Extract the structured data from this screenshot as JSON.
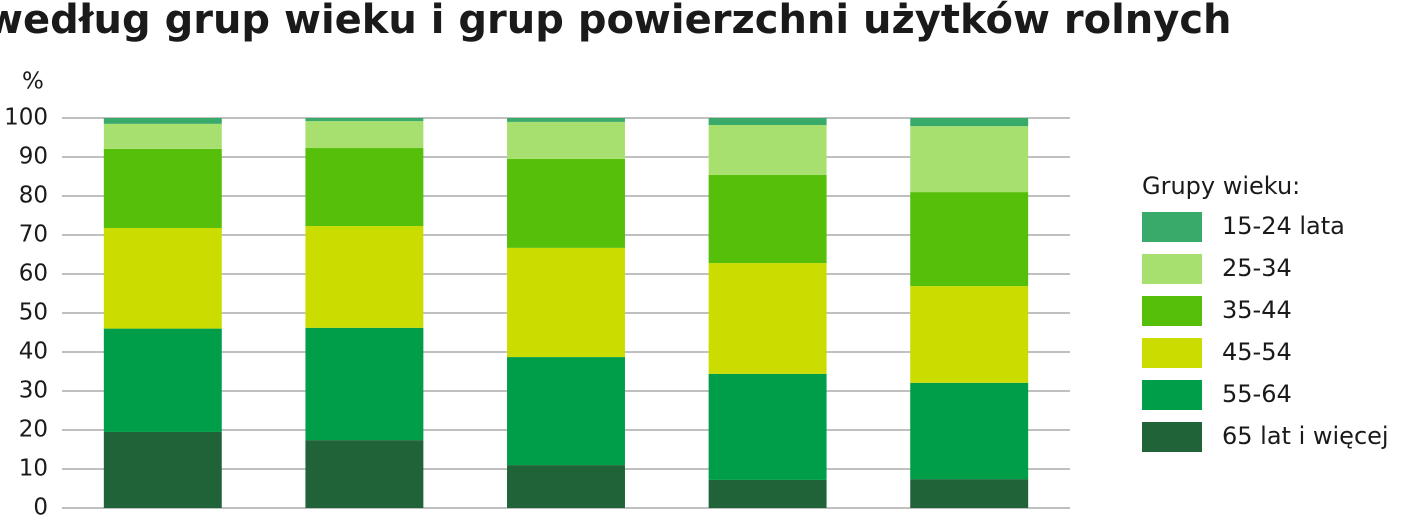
{
  "chart_data": {
    "type": "stacked_bar",
    "title": "według grup wieku i grup powierzchni użytków rolnych",
    "y_label": "%",
    "legend_title": "Grupy wieku:",
    "categories": [
      null,
      null,
      null,
      null,
      null
    ],
    "series": [
      {
        "name": "15-24 lata",
        "color": "#3aaa6a",
        "values": [
          1.5,
          0.8,
          1.0,
          1.8,
          2.1
        ]
      },
      {
        "name": "25-34",
        "color": "#a8e070",
        "values": [
          6.4,
          6.9,
          9.5,
          12.8,
          16.9
        ]
      },
      {
        "name": "35-44",
        "color": "#55bf0a",
        "values": [
          20.3,
          20.0,
          22.8,
          22.6,
          24.1
        ]
      },
      {
        "name": "45-54",
        "color": "#cbdc00",
        "values": [
          25.8,
          26.1,
          28.0,
          28.4,
          24.8
        ]
      },
      {
        "name": "55-64",
        "color": "#009e48",
        "values": [
          26.5,
          28.8,
          27.7,
          27.2,
          24.7
        ]
      },
      {
        "name": "65 lat i więcej",
        "color": "#216338",
        "values": [
          19.5,
          17.4,
          11.0,
          7.2,
          7.4
        ]
      }
    ],
    "ylim": [
      0,
      100
    ],
    "yticks": [
      0,
      10,
      20,
      30,
      40,
      50,
      60,
      70,
      80,
      90,
      100
    ],
    "grid": true,
    "legend": "right"
  }
}
